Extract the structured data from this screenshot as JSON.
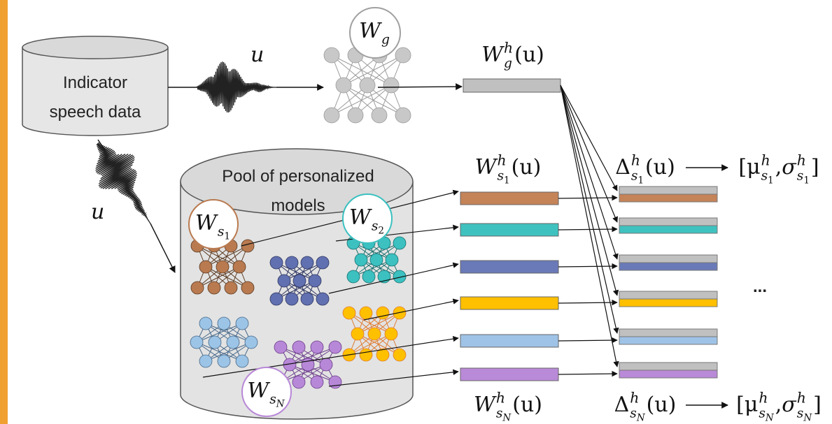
{
  "database": {
    "lines": [
      "Indicator",
      "speech data"
    ]
  },
  "signal_labels": [
    "u",
    "u"
  ],
  "global_model": {
    "name": [
      {
        "base": "W",
        "sub": "g"
      }
    ],
    "embedding": [
      {
        "base": "W",
        "sup": "h",
        "sub": "g"
      },
      "(u)"
    ]
  },
  "pool": {
    "lines": [
      "Pool of personalized",
      "models"
    ]
  },
  "personal_models": [
    {
      "name": [
        {
          "base": "W",
          "sub": "s",
          "subsub": "1"
        }
      ]
    },
    {
      "name": [
        {
          "base": "W",
          "sub": "s",
          "subsub": "2"
        }
      ]
    },
    {
      "name": [
        {
          "base": "W",
          "sub": "s",
          "subsub": "N"
        }
      ]
    }
  ],
  "embedding_labels": [
    [
      {
        "base": "W",
        "sup": "h",
        "sub": "s",
        "subsub": "1"
      },
      "(u)"
    ],
    [
      {
        "base": "W",
        "sup": "h",
        "sub": "s",
        "subsub": "N"
      },
      "(u)"
    ]
  ],
  "difference_labels": [
    [
      {
        "base": "Δ",
        "sup": "h",
        "sub": "s",
        "subsub": "1"
      },
      "(u)"
    ],
    [
      {
        "base": "Δ",
        "sup": "h",
        "sub": "s",
        "subsub": "N"
      },
      "(u)"
    ]
  ],
  "statistics_labels": [
    [
      "[",
      {
        "base": "μ",
        "sup": "h",
        "sub": "s",
        "subsub": "1"
      },
      ", ",
      {
        "base": "σ",
        "sup": "h",
        "sub": "s",
        "subsub": "1"
      },
      "]"
    ],
    [
      "[",
      {
        "base": "μ",
        "sup": "h",
        "sub": "s",
        "subsub": "N"
      },
      ", ",
      {
        "base": "σ",
        "sup": "h",
        "sub": "s",
        "subsub": "N"
      },
      "]"
    ]
  ],
  "ellipsis": "..."
}
